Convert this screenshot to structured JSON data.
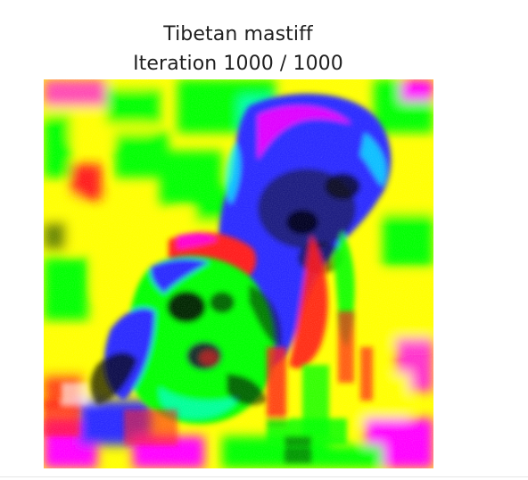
{
  "figure": {
    "title_line1": "Tibetan mastiff",
    "title_line2": "Iteration 1000 / 1000"
  },
  "image": {
    "subject": "class visualization of a dog",
    "palette": {
      "yellow": "#ffff00",
      "green": "#00ff00",
      "blue": "#2a2aff",
      "magenta": "#ff00ff",
      "red": "#ff1a1a",
      "cyan": "#00ffff",
      "black": "#000000",
      "white": "#ffffff"
    }
  }
}
